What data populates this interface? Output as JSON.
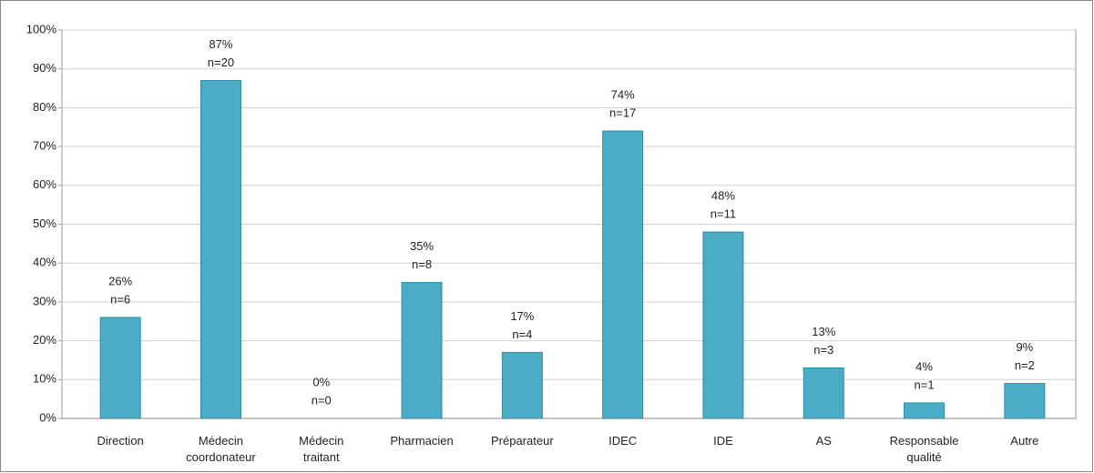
{
  "chart_data": {
    "type": "bar",
    "categories": [
      "Direction",
      "Médecin coordonateur",
      "Médecin traitant",
      "Pharmacien",
      "Préparateur",
      "IDEC",
      "IDE",
      "AS",
      "Responsable qualité",
      "Autre"
    ],
    "values": [
      26,
      87,
      0,
      35,
      17,
      74,
      48,
      13,
      4,
      9
    ],
    "value_labels": [
      "26%",
      "87%",
      "0%",
      "35%",
      "17%",
      "74%",
      "48%",
      "13%",
      "4%",
      "9%"
    ],
    "count_labels": [
      "n=6",
      "n=20",
      "n=0",
      "n=8",
      "n=4",
      "n=17",
      "n=11",
      "n=3",
      "n=1",
      "n=2"
    ],
    "color": "#4bacc6",
    "ylim": [
      0,
      100
    ],
    "yticks": [
      {
        "value": 0,
        "label": "0%"
      },
      {
        "value": 10,
        "label": "10%"
      },
      {
        "value": 20,
        "label": "20%"
      },
      {
        "value": 30,
        "label": "30%"
      },
      {
        "value": 40,
        "label": "40%"
      },
      {
        "value": 50,
        "label": "50%"
      },
      {
        "value": 60,
        "label": "60%"
      },
      {
        "value": 70,
        "label": "70%"
      },
      {
        "value": 80,
        "label": "80%"
      },
      {
        "value": 90,
        "label": "90%"
      },
      {
        "value": 100,
        "label": "100%"
      }
    ],
    "grid": true
  }
}
